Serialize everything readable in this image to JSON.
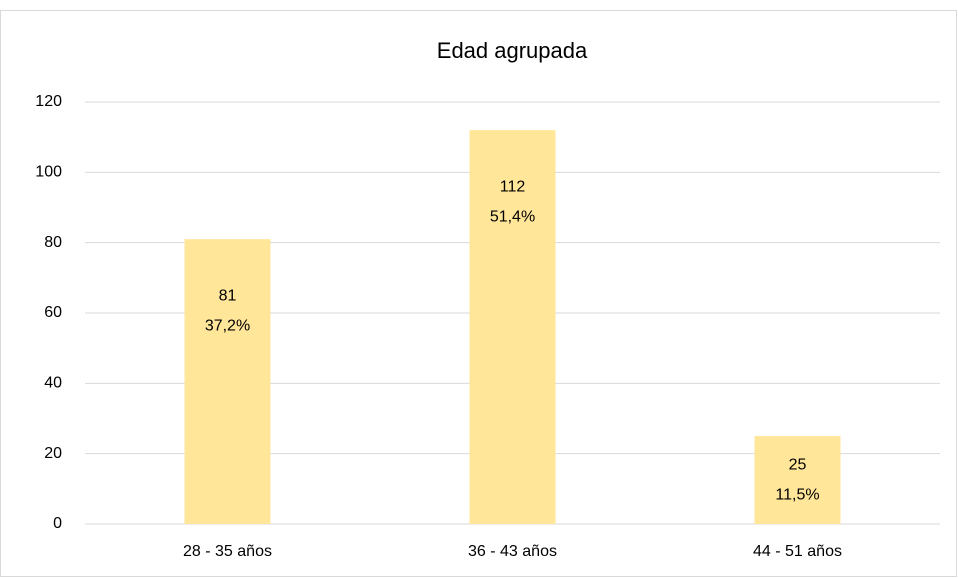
{
  "chart_data": {
    "type": "bar",
    "title": "Edad agrupada",
    "categories": [
      "28 - 35 años",
      "36 - 43 años",
      "44 - 51 años"
    ],
    "values": [
      81,
      112,
      25
    ],
    "shares": [
      "37,2%",
      "51,4%",
      "11,5%"
    ],
    "color": "#ffe699",
    "ylim": [
      0,
      120
    ],
    "yticks": [
      0,
      20,
      40,
      60,
      80,
      100,
      120
    ],
    "grid": true
  }
}
